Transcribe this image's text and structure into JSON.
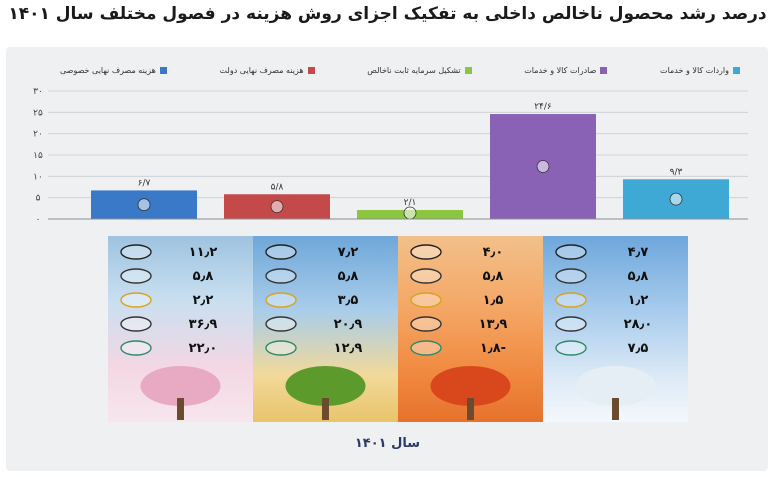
{
  "title": "درصد رشد محصول ناخالص داخلی به تفکیک اجزای روش هزینه در فصول مختلف سال ۱۴۰۱",
  "footer": "سال ۱۴۰۱",
  "colors": {
    "private_consumption": "#3a79c8",
    "gov_consumption": "#c44a4a",
    "capital_formation": "#8cc63f",
    "exports": "#8a62b5",
    "imports": "#3fa9d6"
  },
  "legend": [
    {
      "label": "هزینه مصرف نهایی خصوصی",
      "color": "#3a79c8",
      "icon": "house-family-icon"
    },
    {
      "label": "هزینه مصرف نهایی دولت",
      "color": "#c44a4a",
      "icon": "government-building-icon"
    },
    {
      "label": "تشکیل سرمایه ثابت ناخالص",
      "color": "#8cc63f",
      "icon": "coins-plant-icon"
    },
    {
      "label": "صادرات کالا و خدمات",
      "color": "#8a62b5",
      "icon": "globe-export-icon"
    },
    {
      "label": "واردات کالا و خدمات",
      "color": "#3fa9d6",
      "icon": "import-arrow-icon"
    }
  ],
  "chart_data": {
    "type": "bar",
    "categories": [
      "هزینه مصرف نهایی خصوصی",
      "هزینه مصرف نهایی دولت",
      "تشکیل سرمایه ثابت ناخالص",
      "صادرات کالا و خدمات",
      "واردات کالا و خدمات"
    ],
    "values": [
      6.7,
      5.8,
      2.1,
      24.6,
      9.3
    ],
    "value_labels": [
      "۶/۷",
      "۵/۸",
      "۲/۱",
      "۲۴/۶",
      "۹/۳"
    ],
    "ylim": [
      0,
      30
    ],
    "yticks": [
      0,
      5,
      10,
      15,
      20,
      25,
      30
    ],
    "ytick_labels": [
      "۰",
      "۵",
      "۱۰",
      "۱۵",
      "۲۰",
      "۲۵",
      "۳۰"
    ],
    "grid": true,
    "legend_position": "top",
    "title": "درصد رشد محصول ناخالص داخلی به تفکیک اجزای روش هزینه در فصول مختلف سال ۱۴۰۱",
    "seasons": [
      {
        "name": "spring",
        "values": [
          "۱۱٫۲",
          "۵٫۸",
          "۲٫۲",
          "۳۶٫۹",
          "۲۲٫۰"
        ]
      },
      {
        "name": "summer",
        "values": [
          "۷٫۲",
          "۵٫۸",
          "۳٫۵",
          "۲۰٫۹",
          "۱۲٫۹"
        ]
      },
      {
        "name": "autumn",
        "values": [
          "۴٫۰",
          "۵٫۸",
          "۱٫۵",
          "۱۳٫۹",
          "-۱٫۸"
        ]
      },
      {
        "name": "winter",
        "values": [
          "۴٫۷",
          "۵٫۸",
          "۱٫۲",
          "۲۸٫۰",
          "۷٫۵"
        ]
      }
    ]
  }
}
